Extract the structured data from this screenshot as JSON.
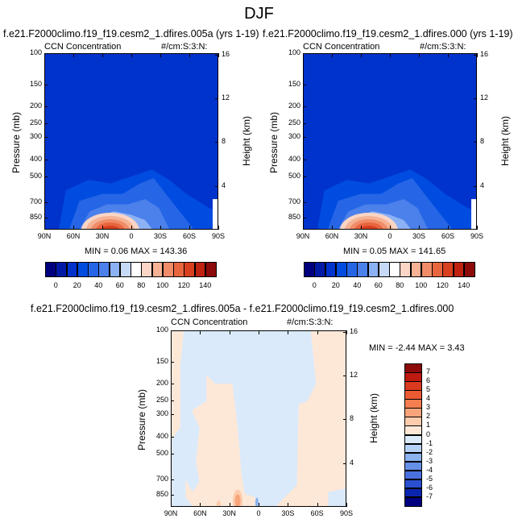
{
  "page_title": "DJF",
  "chart_data": [
    {
      "type": "heatmap",
      "run_label": "f.e21.F2000climo.f19_f19.cesm2_1.dfires.005a (yrs 1-19)",
      "title": "CCN Concentration",
      "units": "#/cm:S:3:N:",
      "xlabel": "",
      "ylabel": "Pressure (mb)",
      "y2label": "Height (km)",
      "x_ticks": [
        "90N",
        "60N",
        "30N",
        "0",
        "30S",
        "60S",
        "90S"
      ],
      "y_ticks": [
        "100",
        "150",
        "200",
        "250",
        "300",
        "400",
        "500",
        "700",
        "850"
      ],
      "y2_ticks": [
        "16",
        "12",
        "8",
        "4"
      ],
      "stats": "MIN =   0.06   MAX = 143.36",
      "min": 0.06,
      "max": 143.36,
      "peak_lat": 22,
      "ylim": [
        100,
        1000
      ],
      "colorbar_labels": [
        "0",
        "20",
        "40",
        "60",
        "80",
        "100",
        "120",
        "140"
      ]
    },
    {
      "type": "heatmap",
      "run_label": "f.e21.F2000climo.f19_f19.cesm2_1.dfires.000 (yrs 1-19)",
      "title": "CCN Concentration",
      "units": "#/cm:S:3:N:",
      "xlabel": "",
      "ylabel": "Pressure (mb)",
      "y2label": "Height (km)",
      "x_ticks": [
        "90N",
        "60N",
        "30N",
        "0",
        "30S",
        "60S",
        "90S"
      ],
      "y_ticks": [
        "100",
        "150",
        "200",
        "250",
        "300",
        "400",
        "500",
        "700",
        "850"
      ],
      "y2_ticks": [
        "16",
        "12",
        "8",
        "4"
      ],
      "stats": "MIN =   0.05   MAX = 141.65",
      "min": 0.05,
      "max": 141.65,
      "peak_lat": 22,
      "ylim": [
        100,
        1000
      ],
      "colorbar_labels": [
        "0",
        "20",
        "40",
        "60",
        "80",
        "100",
        "120",
        "140"
      ]
    },
    {
      "type": "heatmap",
      "run_label": "f.e21.F2000climo.f19_f19.cesm2_1.dfires.005a - f.e21.F2000climo.f19_f19.cesm2_1.dfires.000",
      "title": "CCN Concentration",
      "units": "#/cm:S:3:N:",
      "xlabel": "",
      "ylabel": "Pressure (mb)",
      "y2label": "Height (km)",
      "x_ticks": [
        "90N",
        "60N",
        "30N",
        "0",
        "30S",
        "60S",
        "90S"
      ],
      "y_ticks": [
        "100",
        "150",
        "200",
        "250",
        "300",
        "400",
        "500",
        "700",
        "850"
      ],
      "y2_ticks": [
        "16",
        "12",
        "8",
        "4"
      ],
      "stats": "MIN =  -2.44   MAX =   3.43",
      "min": -2.44,
      "max": 3.43,
      "ylim": [
        100,
        1000
      ],
      "colorbar_labels": [
        "7",
        "6",
        "5",
        "4",
        "3",
        "2",
        "1",
        "0",
        "-1",
        "-2",
        "-3",
        "-4",
        "-5",
        "-6",
        "-7"
      ]
    }
  ],
  "colors": {
    "seq": [
      "#00007f",
      "#001aa6",
      "#0033cc",
      "#004ce0",
      "#2666e6",
      "#4c80ea",
      "#8cb2f5",
      "#c6daf8",
      "#ffffff",
      "#fbd5c5",
      "#f6b294",
      "#f08c68",
      "#e8663f",
      "#d94020",
      "#bf2210",
      "#8c0a0a"
    ],
    "diff": [
      "#8c0a0a",
      "#bf1a10",
      "#d93a1f",
      "#ec5a33",
      "#f47e50",
      "#f9a47a",
      "#fcccad",
      "#fde8d8",
      "#daeafb",
      "#b5d2f6",
      "#8ab2ef",
      "#6690e8",
      "#4a70e0",
      "#2a4fd0",
      "#0a26b0",
      "#000080"
    ]
  }
}
